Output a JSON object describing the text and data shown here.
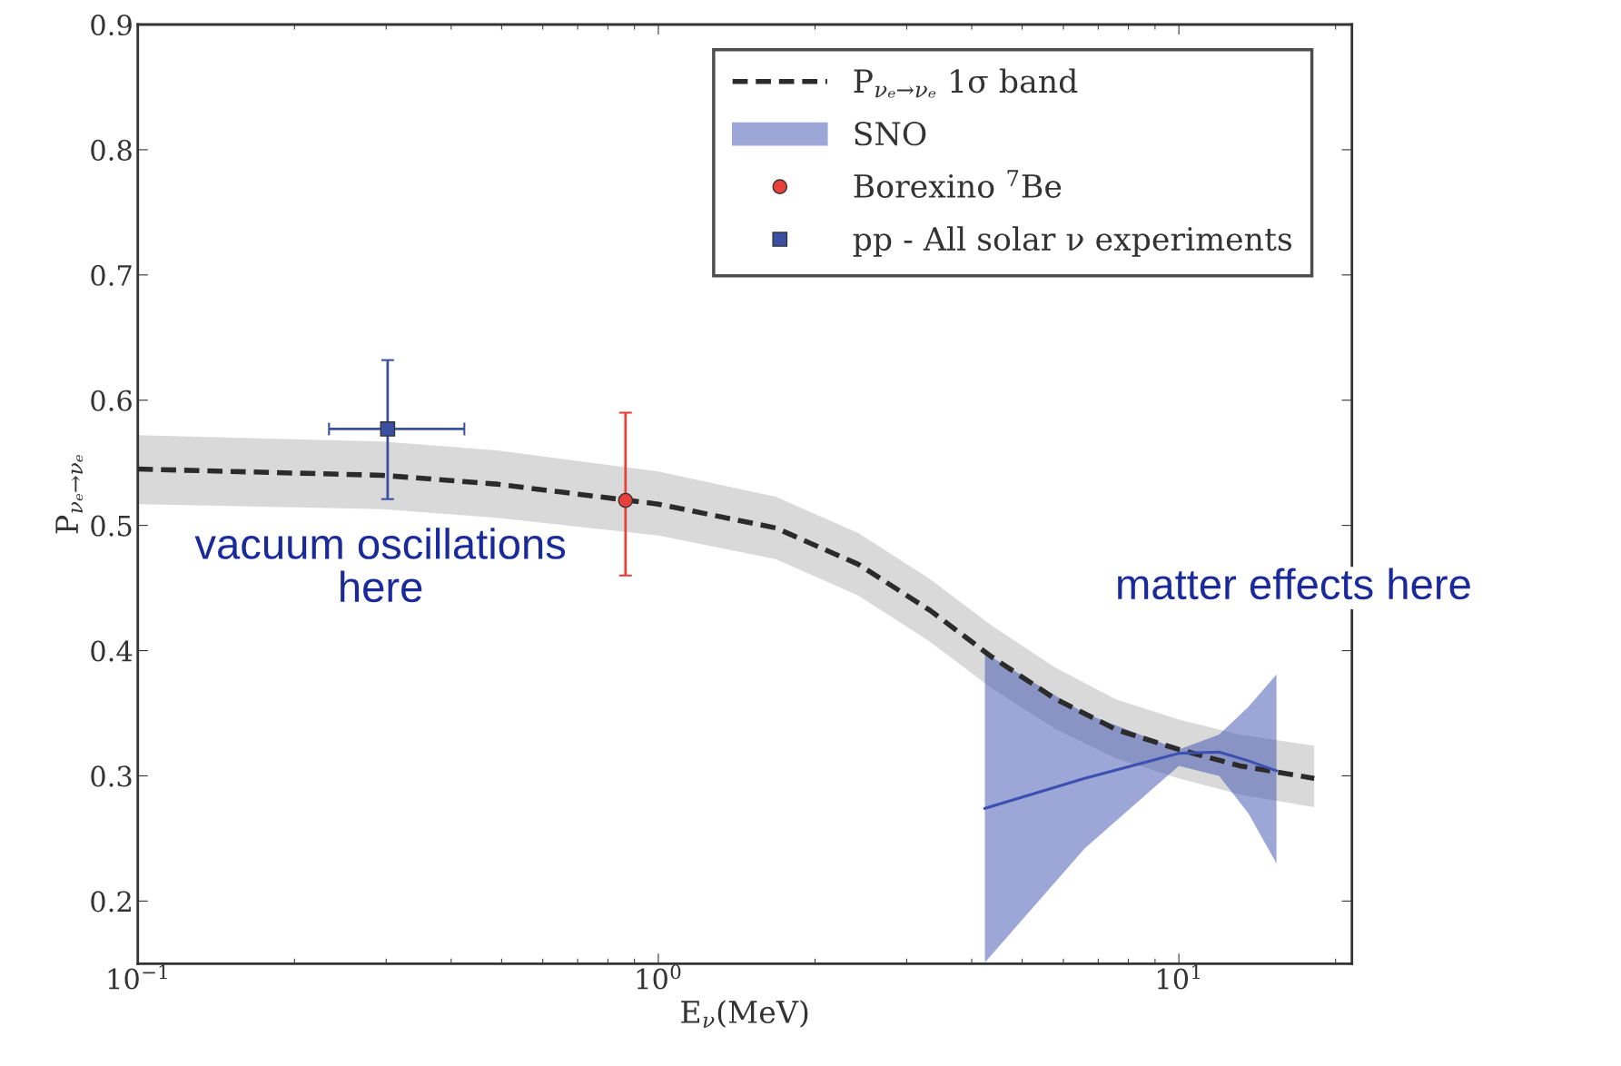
{
  "chart_data": {
    "type": "line",
    "xlabel": "E$_{ν}$(MeV)",
    "ylabel": "P$_{νₑ→νₑ}$",
    "log": "x",
    "xlim": [
      0.1,
      21.5
    ],
    "xticks": [
      {
        "value": 0.1,
        "label": "10$^{−1}$"
      },
      {
        "value": 1,
        "label": "10$^{0}$"
      },
      {
        "value": 10,
        "label": "10$^{1}$"
      }
    ],
    "ylim": [
      0.15,
      0.9
    ],
    "yticks": [
      0.2,
      0.3,
      0.4,
      0.5,
      0.6,
      0.7,
      0.8,
      0.9
    ],
    "grid": false,
    "legend": "top right",
    "series": [
      {
        "name": "P$_{νₑ→νₑ}$ 1σ band",
        "color": "#2b2b2b",
        "line_style": "dashed",
        "marker": "none",
        "x": [
          0.1,
          0.295,
          0.489,
          1.0,
          1.68,
          2.42,
          3.33,
          4.37,
          5.76,
          7.57,
          10.0,
          13.1,
          18.2
        ],
        "values": [
          0.545,
          0.54,
          0.533,
          0.517,
          0.498,
          0.469,
          0.432,
          0.395,
          0.362,
          0.337,
          0.321,
          0.308,
          0.298
        ],
        "lower": [
          0.517,
          0.513,
          0.506,
          0.492,
          0.473,
          0.444,
          0.407,
          0.37,
          0.338,
          0.314,
          0.298,
          0.285,
          0.275
        ],
        "upper": [
          0.572,
          0.567,
          0.56,
          0.543,
          0.523,
          0.494,
          0.457,
          0.42,
          0.387,
          0.361,
          0.345,
          0.333,
          0.324
        ]
      },
      {
        "name": "SNO",
        "color": "#3b50b0",
        "line_style": "solid",
        "marker": "none",
        "x": [
          4.24,
          6.59,
          10.0,
          11.95,
          13.6,
          15.4
        ],
        "values": [
          0.274,
          0.298,
          0.318,
          0.319,
          0.312,
          0.304
        ],
        "lower": [
          0.151,
          0.242,
          0.308,
          0.3,
          0.27,
          0.23
        ],
        "upper": [
          0.398,
          0.35,
          0.321,
          0.333,
          0.355,
          0.381
        ]
      },
      {
        "name": "Borexino $^{7}$Be",
        "type": "scatter",
        "color": "#e8403a",
        "marker": "circle",
        "x": [
          0.865
        ],
        "values": [
          0.52
        ],
        "errors": [
          [
            0.46,
            0.59
          ]
        ]
      },
      {
        "name": "pp - All solar ν experiments",
        "type": "scatter",
        "color": "#3b50a0",
        "marker": "square",
        "x": [
          0.302
        ],
        "values": [
          0.577
        ],
        "errors": [
          [
            0.521,
            0.632
          ]
        ],
        "xerrors": [
          [
            0.233,
            0.424
          ]
        ]
      }
    ],
    "annotations": [
      "vacuum oscillations\nhere",
      "matter effects here"
    ]
  }
}
